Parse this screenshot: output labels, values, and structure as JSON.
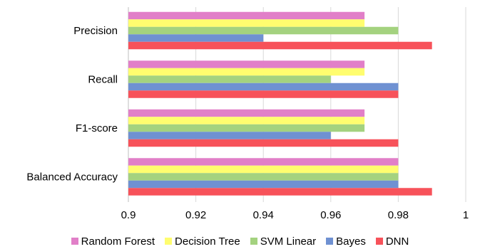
{
  "chart_data": {
    "type": "bar",
    "orientation": "horizontal",
    "categories": [
      "Precision",
      "Recall",
      "F1-score",
      "Balanced Accuracy"
    ],
    "series": [
      {
        "name": "Random Forest",
        "color": "#e17fc8",
        "values": [
          0.97,
          0.97,
          0.97,
          0.98
        ]
      },
      {
        "name": "Decision Tree",
        "color": "#fffd6f",
        "values": [
          0.97,
          0.97,
          0.97,
          0.98
        ]
      },
      {
        "name": "SVM Linear",
        "color": "#a4d27f",
        "values": [
          0.98,
          0.96,
          0.97,
          0.98
        ]
      },
      {
        "name": "Bayes",
        "color": "#6f91d2",
        "values": [
          0.94,
          0.98,
          0.96,
          0.98
        ]
      },
      {
        "name": "DNN",
        "color": "#f7525a",
        "values": [
          0.99,
          0.98,
          0.98,
          0.99
        ]
      }
    ],
    "xlim": [
      0.9,
      1.0
    ],
    "xticks": [
      "0.9",
      "0.92",
      "0.94",
      "0.96",
      "0.98",
      "1"
    ],
    "xlabel": "",
    "ylabel": "",
    "title": "",
    "grid": "vertical",
    "legend_position": "bottom"
  }
}
